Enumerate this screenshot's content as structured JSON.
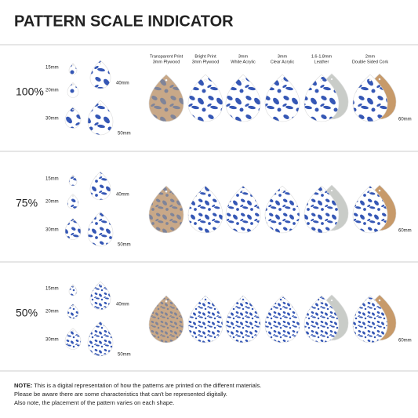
{
  "title": "PATTERN SCALE INDICATOR",
  "materials": [
    {
      "line1": "Transparent Print",
      "line2": "3mm Plywood"
    },
    {
      "line1": "Bright Print",
      "line2": "3mm Plywood"
    },
    {
      "line1": "3mm",
      "line2": "White Acrylic"
    },
    {
      "line1": "3mm",
      "line2": "Clear Acrylic"
    },
    {
      "line1": "1.6-1.8mm",
      "line2": "Leather"
    },
    {
      "line1": "2mm",
      "line2": "Double Sided Cork"
    }
  ],
  "rows": [
    {
      "scale": "100%"
    },
    {
      "scale": "75%"
    },
    {
      "scale": "50%"
    }
  ],
  "sizes": [
    "15mm",
    "20mm",
    "30mm",
    "40mm",
    "50mm",
    "60mm"
  ],
  "note": {
    "label": "NOTE:",
    "lines": [
      "This is a digital representation of how the patterns are printed on the different materials.",
      "Please be aware there are some characteristics that can't be represented digitally.",
      "Also note, the placement of the pattern varies on each shape."
    ]
  }
}
